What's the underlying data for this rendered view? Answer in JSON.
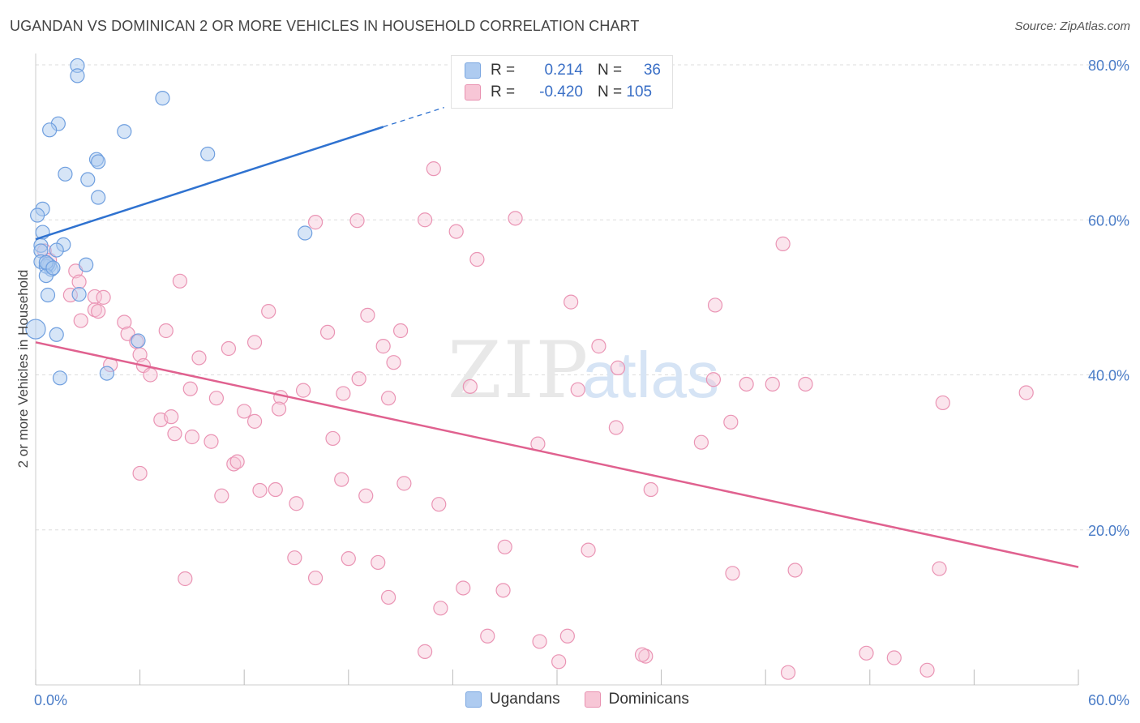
{
  "header": {
    "title": "UGANDAN VS DOMINICAN 2 OR MORE VEHICLES IN HOUSEHOLD CORRELATION CHART",
    "source": "Source: ZipAtlas.com"
  },
  "watermark": {
    "zip": "ZIP",
    "atlas": "atlas"
  },
  "legend": {
    "rows": [
      {
        "r_label": "R =",
        "r_value": "0.214",
        "n_label": "N =",
        "n_value": "36",
        "fill": "#aecbf0",
        "stroke": "#7aa6e0"
      },
      {
        "r_label": "R =",
        "r_value": "-0.420",
        "n_label": "N = 105",
        "n_value": "",
        "fill": "#f7c6d6",
        "stroke": "#e890b0"
      }
    ]
  },
  "bottom_legend": {
    "series1": "Ugandans",
    "series2": "Dominicans"
  },
  "colors": {
    "blue_fill": "#aecbf0",
    "blue_stroke": "#6f9fdf",
    "blue_line": "#2f72d0",
    "pink_fill": "#f7c6d6",
    "pink_stroke": "#ea94b4",
    "pink_line": "#e0618f",
    "grid": "#dddddd",
    "tick_label": "#4a7cc7"
  },
  "chart_data": {
    "type": "scatter",
    "xlabel": "",
    "ylabel": "2 or more Vehicles in Household",
    "xlim": [
      0,
      60
    ],
    "ylim": [
      0,
      80
    ],
    "x_tick_labels": [
      "0.0%",
      "60.0%"
    ],
    "y_ticks": [
      20,
      40,
      60,
      80
    ],
    "y_tick_labels": [
      "20.0%",
      "40.0%",
      "60.0%",
      "80.0%"
    ],
    "grid": "horizontal dashed",
    "series": [
      {
        "name": "Ugandans",
        "points": [
          [
            2.4,
            79.9
          ],
          [
            2.4,
            78.6
          ],
          [
            7.3,
            75.7
          ],
          [
            1.3,
            72.4
          ],
          [
            0.8,
            71.6
          ],
          [
            5.1,
            71.4
          ],
          [
            9.9,
            68.5
          ],
          [
            3.5,
            67.8
          ],
          [
            3.6,
            67.5
          ],
          [
            1.7,
            65.9
          ],
          [
            3.0,
            65.2
          ],
          [
            3.6,
            62.9
          ],
          [
            0.4,
            61.4
          ],
          [
            0.1,
            60.6
          ],
          [
            0.4,
            58.4
          ],
          [
            15.5,
            58.3
          ],
          [
            1.6,
            56.8
          ],
          [
            0.3,
            56.7
          ],
          [
            0.3,
            56.0
          ],
          [
            1.2,
            56.1
          ],
          [
            0.3,
            54.6
          ],
          [
            0.8,
            54.1
          ],
          [
            2.9,
            54.2
          ],
          [
            0.9,
            53.6
          ],
          [
            0.6,
            54.0
          ],
          [
            0.7,
            54.3
          ],
          [
            0.6,
            52.8
          ],
          [
            0.7,
            50.3
          ],
          [
            2.5,
            50.4
          ],
          [
            0.0,
            45.9
          ],
          [
            1.2,
            45.2
          ],
          [
            5.9,
            44.4
          ],
          [
            1.4,
            39.6
          ],
          [
            4.1,
            40.2
          ],
          [
            0.6,
            54.5
          ],
          [
            1.0,
            53.8
          ]
        ]
      },
      {
        "name": "Dominicans",
        "points": [
          [
            0.5,
            56.0
          ],
          [
            0.8,
            54.8
          ],
          [
            2.3,
            53.4
          ],
          [
            2.5,
            52.0
          ],
          [
            2.0,
            50.3
          ],
          [
            3.4,
            50.1
          ],
          [
            3.9,
            50.0
          ],
          [
            3.4,
            48.4
          ],
          [
            3.6,
            48.2
          ],
          [
            2.6,
            47.0
          ],
          [
            5.1,
            46.8
          ],
          [
            5.3,
            45.3
          ],
          [
            5.8,
            44.3
          ],
          [
            6.0,
            42.6
          ],
          [
            4.3,
            41.3
          ],
          [
            6.2,
            41.2
          ],
          [
            6.6,
            40.0
          ],
          [
            8.3,
            52.1
          ],
          [
            7.5,
            45.7
          ],
          [
            9.4,
            42.2
          ],
          [
            11.1,
            43.4
          ],
          [
            12.6,
            44.2
          ],
          [
            13.4,
            48.2
          ],
          [
            16.1,
            59.7
          ],
          [
            16.8,
            45.5
          ],
          [
            18.5,
            59.9
          ],
          [
            19.1,
            47.7
          ],
          [
            21.0,
            45.7
          ],
          [
            22.4,
            60.0
          ],
          [
            22.9,
            66.6
          ],
          [
            24.2,
            58.5
          ],
          [
            25.4,
            54.9
          ],
          [
            27.6,
            60.2
          ],
          [
            20.0,
            43.7
          ],
          [
            20.6,
            41.6
          ],
          [
            8.9,
            38.2
          ],
          [
            10.4,
            37.0
          ],
          [
            12.0,
            35.3
          ],
          [
            12.6,
            34.0
          ],
          [
            14.1,
            37.1
          ],
          [
            14.0,
            35.6
          ],
          [
            15.4,
            38.0
          ],
          [
            17.7,
            37.6
          ],
          [
            20.3,
            37.0
          ],
          [
            18.6,
            39.5
          ],
          [
            7.2,
            34.2
          ],
          [
            7.8,
            34.6
          ],
          [
            8.0,
            32.4
          ],
          [
            9.0,
            32.0
          ],
          [
            10.1,
            31.4
          ],
          [
            11.4,
            28.5
          ],
          [
            11.6,
            28.8
          ],
          [
            17.1,
            31.8
          ],
          [
            25.0,
            38.5
          ],
          [
            28.9,
            31.1
          ],
          [
            30.8,
            49.4
          ],
          [
            31.2,
            38.1
          ],
          [
            32.4,
            43.7
          ],
          [
            33.5,
            40.9
          ],
          [
            33.4,
            33.2
          ],
          [
            35.4,
            25.2
          ],
          [
            38.3,
            31.3
          ],
          [
            39.1,
            49.0
          ],
          [
            39.0,
            39.4
          ],
          [
            40.0,
            33.9
          ],
          [
            40.9,
            38.8
          ],
          [
            42.4,
            38.8
          ],
          [
            43.0,
            56.9
          ],
          [
            44.3,
            38.8
          ],
          [
            6.0,
            27.3
          ],
          [
            10.7,
            24.4
          ],
          [
            12.9,
            25.1
          ],
          [
            13.8,
            25.2
          ],
          [
            15.0,
            23.4
          ],
          [
            17.6,
            26.5
          ],
          [
            19.0,
            24.4
          ],
          [
            21.2,
            26.0
          ],
          [
            23.2,
            23.3
          ],
          [
            8.6,
            13.7
          ],
          [
            14.9,
            16.4
          ],
          [
            16.1,
            13.8
          ],
          [
            18.0,
            16.3
          ],
          [
            19.7,
            15.8
          ],
          [
            20.3,
            11.3
          ],
          [
            22.4,
            4.3
          ],
          [
            23.3,
            9.9
          ],
          [
            24.6,
            12.5
          ],
          [
            26.0,
            6.3
          ],
          [
            26.9,
            12.2
          ],
          [
            27.0,
            17.8
          ],
          [
            29.0,
            5.6
          ],
          [
            30.1,
            3.0
          ],
          [
            30.6,
            6.3
          ],
          [
            31.8,
            17.4
          ],
          [
            35.1,
            3.7
          ],
          [
            34.9,
            3.9
          ],
          [
            40.1,
            14.4
          ],
          [
            43.3,
            1.6
          ],
          [
            43.7,
            14.8
          ],
          [
            47.8,
            4.1
          ],
          [
            49.4,
            3.5
          ],
          [
            51.3,
            1.9
          ],
          [
            52.0,
            15.0
          ],
          [
            52.2,
            36.4
          ],
          [
            57.0,
            37.7
          ]
        ]
      }
    ],
    "trend_lines": [
      {
        "name": "Ugandans",
        "x0": 0,
        "y0": 57.5,
        "x1": 20.0,
        "y1": 72.0,
        "dash_to_x": 23.5,
        "dash_to_y": 74.5
      },
      {
        "name": "Dominicans",
        "x0": 0,
        "y0": 44.2,
        "x1": 60,
        "y1": 15.2
      }
    ]
  }
}
